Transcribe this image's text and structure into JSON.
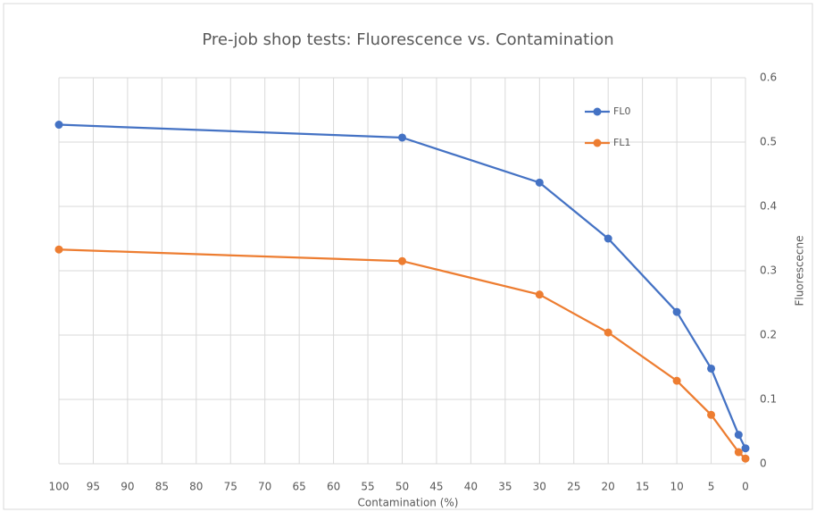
{
  "chart_data": {
    "type": "line",
    "title": "Pre-job shop tests: Fluorescence vs. Contamination",
    "x_label": "Contamination (%)",
    "y_label": "Fluorescecne",
    "x": [
      100,
      50,
      30,
      20,
      10,
      5,
      1,
      0
    ],
    "series": [
      {
        "name": "FL0",
        "color": "#4472c4",
        "values": [
          0.527,
          0.507,
          0.437,
          0.35,
          0.236,
          0.148,
          0.045,
          0.024
        ]
      },
      {
        "name": "FL1",
        "color": "#ed7d31",
        "values": [
          0.333,
          0.315,
          0.263,
          0.204,
          0.129,
          0.076,
          0.018,
          0.008
        ]
      }
    ],
    "xlim": [
      100,
      0
    ],
    "xticks": [
      100,
      95,
      90,
      85,
      80,
      75,
      70,
      65,
      60,
      55,
      50,
      45,
      40,
      35,
      30,
      25,
      20,
      15,
      10,
      5,
      0
    ],
    "ylim": [
      0,
      0.6
    ],
    "yticks": [
      0,
      0.1,
      0.2,
      0.3,
      0.4,
      0.5,
      0.6
    ],
    "y_axis_side": "right",
    "grid": true,
    "legend": "top-right"
  }
}
